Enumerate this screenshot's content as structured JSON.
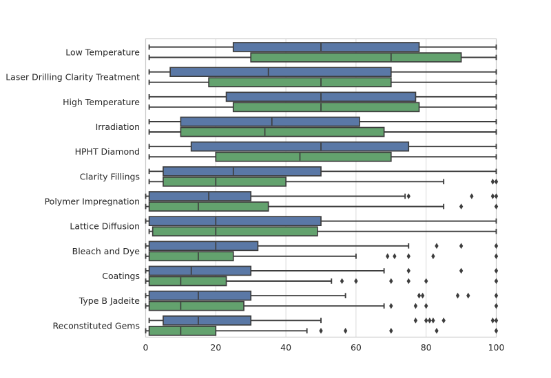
{
  "chart_data": {
    "type": "boxplot",
    "orientation": "horizontal",
    "title": "",
    "xlabel": "",
    "ylabel": "",
    "xlim": [
      0,
      100
    ],
    "xticks": [
      "0",
      "20",
      "40",
      "60",
      "80",
      "100"
    ],
    "xtick_values": [
      0,
      20,
      40,
      60,
      80,
      100
    ],
    "grid": "vertical",
    "legend": false,
    "colors": {
      "series_blue": "#5a78a6",
      "series_green": "#63a26e",
      "box_stroke": "#3d3d3d",
      "whisker": "#3d3d3d",
      "outlier": "#3d3d3d",
      "gridline": "#d9d9d9",
      "plot_border": "#c9c9c9",
      "text": "#262626",
      "background": "#ffffff"
    },
    "categories": [
      "Low Temperature",
      "Laser Drilling Clarity Treatment",
      "High Temperature",
      "Irradiation",
      "HPHT Diamond",
      "Clarity Fillings",
      "Polymer Impregnation",
      "Lattice Diffusion",
      "Bleach and Dye",
      "Coatings",
      "Type B Jadeite",
      "Reconstituted Gems"
    ],
    "series": [
      {
        "name": "blue",
        "color": "#5a78a6",
        "boxes": [
          {
            "whislo": 1,
            "q1": 25,
            "med": 50,
            "q3": 78,
            "whishi": 100,
            "outliers": []
          },
          {
            "whislo": 1,
            "q1": 7,
            "med": 35,
            "q3": 70,
            "whishi": 100,
            "outliers": []
          },
          {
            "whislo": 1,
            "q1": 23,
            "med": 50,
            "q3": 77,
            "whishi": 100,
            "outliers": []
          },
          {
            "whislo": 1,
            "q1": 10,
            "med": 36,
            "q3": 61,
            "whishi": 100,
            "outliers": []
          },
          {
            "whislo": 1,
            "q1": 13,
            "med": 50,
            "q3": 75,
            "whishi": 100,
            "outliers": []
          },
          {
            "whislo": 1,
            "q1": 5,
            "med": 25,
            "q3": 50,
            "whishi": 100,
            "outliers": []
          },
          {
            "whislo": 0,
            "q1": 1,
            "med": 18,
            "q3": 30,
            "whishi": 74,
            "outliers": [
              75,
              93,
              99,
              100
            ]
          },
          {
            "whislo": 0,
            "q1": 1,
            "med": 20,
            "q3": 50,
            "whishi": 100,
            "outliers": []
          },
          {
            "whislo": 0,
            "q1": 1,
            "med": 20,
            "q3": 32,
            "whishi": 75,
            "outliers": [
              83,
              90,
              100
            ]
          },
          {
            "whislo": 0,
            "q1": 1,
            "med": 13,
            "q3": 30,
            "whishi": 68,
            "outliers": [
              75,
              90,
              100
            ]
          },
          {
            "whislo": 0,
            "q1": 1,
            "med": 15,
            "q3": 30,
            "whishi": 57,
            "outliers": [
              78,
              79,
              89,
              92,
              100
            ]
          },
          {
            "whislo": 1,
            "q1": 5,
            "med": 15,
            "q3": 30,
            "whishi": 50,
            "outliers": [
              77,
              80,
              81,
              82,
              85,
              99,
              100
            ]
          }
        ]
      },
      {
        "name": "green",
        "color": "#63a26e",
        "boxes": [
          {
            "whislo": 1,
            "q1": 30,
            "med": 70,
            "q3": 90,
            "whishi": 100,
            "outliers": []
          },
          {
            "whislo": 1,
            "q1": 18,
            "med": 50,
            "q3": 70,
            "whishi": 100,
            "outliers": []
          },
          {
            "whislo": 1,
            "q1": 25,
            "med": 50,
            "q3": 78,
            "whishi": 100,
            "outliers": []
          },
          {
            "whislo": 1,
            "q1": 10,
            "med": 34,
            "q3": 68,
            "whishi": 100,
            "outliers": []
          },
          {
            "whislo": 1,
            "q1": 20,
            "med": 44,
            "q3": 70,
            "whishi": 100,
            "outliers": []
          },
          {
            "whislo": 1,
            "q1": 5,
            "med": 20,
            "q3": 40,
            "whishi": 85,
            "outliers": [
              99,
              100
            ]
          },
          {
            "whislo": 0,
            "q1": 1,
            "med": 15,
            "q3": 35,
            "whishi": 85,
            "outliers": [
              90,
              100
            ]
          },
          {
            "whislo": 1,
            "q1": 2,
            "med": 20,
            "q3": 49,
            "whishi": 100,
            "outliers": []
          },
          {
            "whislo": 0,
            "q1": 1,
            "med": 15,
            "q3": 25,
            "whishi": 60,
            "outliers": [
              69,
              71,
              75,
              82,
              100
            ]
          },
          {
            "whislo": 0,
            "q1": 1,
            "med": 10,
            "q3": 23,
            "whishi": 53,
            "outliers": [
              56,
              60,
              70,
              75,
              80,
              100
            ]
          },
          {
            "whislo": 0,
            "q1": 1,
            "med": 10,
            "q3": 28,
            "whishi": 68,
            "outliers": [
              70,
              77,
              80,
              100
            ]
          },
          {
            "whislo": 0,
            "q1": 1,
            "med": 10,
            "q3": 20,
            "whishi": 46,
            "outliers": [
              50,
              57,
              70,
              83,
              100
            ]
          }
        ]
      }
    ]
  }
}
